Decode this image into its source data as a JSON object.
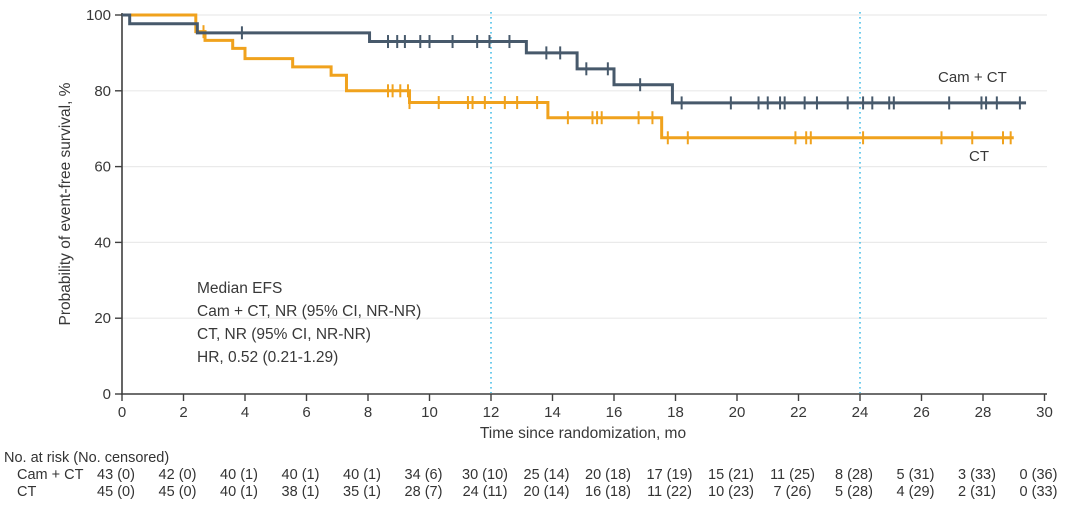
{
  "chart_data": {
    "type": "line",
    "subtype": "kaplan-meier-step",
    "title": "",
    "xlabel": "Time since randomization, mo",
    "ylabel": "Probability of event-free survival, %",
    "xlim": [
      0,
      30
    ],
    "ylim": [
      0,
      100
    ],
    "x_ticks": [
      0,
      2,
      4,
      6,
      8,
      10,
      12,
      14,
      16,
      18,
      20,
      22,
      24,
      26,
      28,
      30
    ],
    "y_ticks": [
      0,
      20,
      40,
      60,
      80,
      100
    ],
    "grid": "horizontal-light",
    "reference_lines_x": [
      12,
      24
    ],
    "reference_line_color": "#41bbe5",
    "axis_color": "#3f3f3f",
    "grid_color": "#eaeaea",
    "annotations": [
      "Median EFS",
      "Cam + CT, NR (95% CI, NR-NR)",
      "CT, NR (95% CI, NR-NR)",
      "HR, 0.52 (0.21-1.29)"
    ],
    "series": [
      {
        "name": "CT",
        "color": "#f0a21d",
        "steps": [
          [
            0,
            100
          ],
          [
            2.4,
            95.6
          ],
          [
            2.7,
            93.3
          ],
          [
            3.6,
            91.2
          ],
          [
            4.0,
            88.5
          ],
          [
            5.55,
            86.3
          ],
          [
            6.8,
            84.1
          ],
          [
            7.3,
            80.0
          ],
          [
            9.35,
            76.9
          ],
          [
            13.85,
            72.9
          ],
          [
            17.55,
            67.6
          ]
        ],
        "end_time": 29.0,
        "censor_times": [
          2.65,
          8.65,
          8.8,
          9.05,
          9.3,
          9.35,
          10.3,
          11.25,
          11.4,
          11.8,
          12.45,
          12.85,
          13.5,
          14.5,
          15.3,
          15.45,
          15.6,
          16.8,
          17.25,
          17.75,
          18.4,
          21.9,
          22.25,
          22.4,
          24.1,
          26.65,
          27.65,
          28.65,
          28.9
        ]
      },
      {
        "name": "Cam + CT",
        "color": "#47596b",
        "steps": [
          [
            0,
            100
          ],
          [
            0.25,
            97.7
          ],
          [
            2.45,
            95.3
          ],
          [
            8.05,
            93.0
          ],
          [
            13.15,
            90.0
          ],
          [
            14.8,
            85.8
          ],
          [
            16.0,
            81.6
          ],
          [
            17.9,
            76.8
          ]
        ],
        "end_time": 29.4,
        "censor_times": [
          3.9,
          8.65,
          8.95,
          9.2,
          9.7,
          10.0,
          10.75,
          11.55,
          11.95,
          12.6,
          13.8,
          14.25,
          15.1,
          15.8,
          16.85,
          18.2,
          19.8,
          20.7,
          21.0,
          21.4,
          21.55,
          22.2,
          22.6,
          23.6,
          24.1,
          24.4,
          24.95,
          25.1,
          26.9,
          27.95,
          28.1,
          28.45,
          29.2
        ]
      }
    ],
    "legend_position": "end-of-line-labels"
  },
  "risk_table": {
    "header": "No. at risk (No. censored)",
    "times": [
      0,
      2,
      4,
      6,
      8,
      10,
      12,
      14,
      16,
      18,
      20,
      22,
      24,
      26,
      28,
      30
    ],
    "rows": [
      {
        "label": "Cam + CT",
        "values": [
          "43 (0)",
          "42 (0)",
          "40 (1)",
          "40 (1)",
          "40 (1)",
          "34 (6)",
          "30 (10)",
          "25 (14)",
          "20 (18)",
          "17 (19)",
          "15 (21)",
          "11 (25)",
          "8 (28)",
          "5 (31)",
          "3 (33)",
          "0 (36)"
        ]
      },
      {
        "label": "CT",
        "values": [
          "45 (0)",
          "45 (0)",
          "40 (1)",
          "38 (1)",
          "35 (1)",
          "28 (7)",
          "24 (11)",
          "20 (14)",
          "16 (18)",
          "11 (22)",
          "10 (23)",
          "7 (26)",
          "5 (28)",
          "4 (29)",
          "2 (31)",
          "0 (33)"
        ]
      }
    ]
  }
}
